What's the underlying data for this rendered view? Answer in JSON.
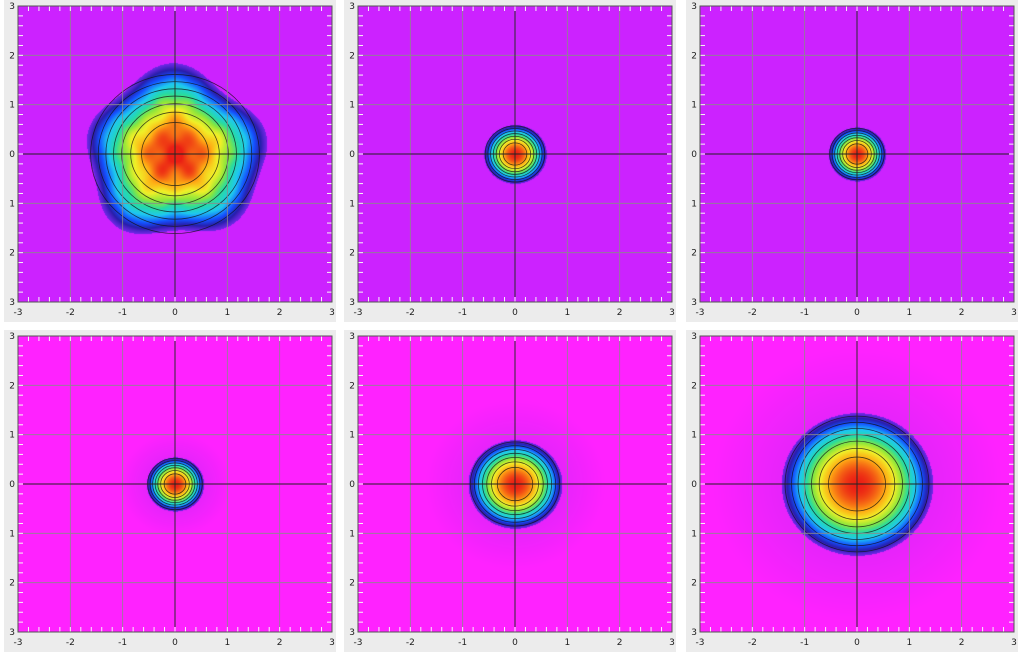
{
  "chart_data": [
    {
      "type": "heatmap",
      "xlim": [
        -3,
        3
      ],
      "ylim": [
        -3,
        3
      ],
      "x_ticks": [
        "-3",
        "-2",
        "-1",
        "0",
        "1",
        "2",
        "3"
      ],
      "y_ticks": [
        "3",
        "2",
        "1",
        "0",
        "1",
        "2",
        "3"
      ],
      "grid": true,
      "contours": true,
      "colormap": "rainbow",
      "background_color": "#cc22ff",
      "blob": {
        "center": [
          0.0,
          0.0
        ],
        "radius": 1.7,
        "peak": 1.0,
        "noise": true
      }
    },
    {
      "type": "heatmap",
      "xlim": [
        -3,
        3
      ],
      "ylim": [
        -3,
        3
      ],
      "x_ticks": [
        "-3",
        "-2",
        "-1",
        "0",
        "1",
        "2",
        "3"
      ],
      "y_ticks": [
        "3",
        "2",
        "1",
        "0",
        "1",
        "2",
        "3"
      ],
      "grid": true,
      "contours": true,
      "colormap": "rainbow",
      "background_color": "#cc22ff",
      "blob": {
        "center": [
          0.0,
          0.0
        ],
        "radius": 0.6,
        "peak": 1.0,
        "noise": false
      }
    },
    {
      "type": "heatmap",
      "xlim": [
        -3,
        3
      ],
      "ylim": [
        -3,
        3
      ],
      "x_ticks": [
        "-3",
        "-2",
        "-1",
        "0",
        "1",
        "2",
        "3"
      ],
      "y_ticks": [
        "3",
        "2",
        "1",
        "0",
        "1",
        "2",
        "3"
      ],
      "grid": true,
      "contours": true,
      "colormap": "rainbow",
      "background_color": "#cc22ff",
      "blob": {
        "center": [
          0.0,
          0.0
        ],
        "radius": 0.55,
        "peak": 1.0,
        "noise": false
      }
    },
    {
      "type": "heatmap",
      "xlim": [
        -3,
        3
      ],
      "ylim": [
        -3,
        3
      ],
      "x_ticks": [
        "-3",
        "-2",
        "-1",
        "0",
        "1",
        "2",
        "3"
      ],
      "y_ticks": [
        "3",
        "2",
        "1",
        "0",
        "1",
        "2",
        "3"
      ],
      "grid": true,
      "contours": true,
      "colormap": "rainbow",
      "background_color": "#ff22ff",
      "blob": {
        "center": [
          0.0,
          0.0
        ],
        "radius": 0.55,
        "peak": 1.0,
        "noise": false
      }
    },
    {
      "type": "heatmap",
      "xlim": [
        -3,
        3
      ],
      "ylim": [
        -3,
        3
      ],
      "x_ticks": [
        "-3",
        "-2",
        "-1",
        "0",
        "1",
        "2",
        "3"
      ],
      "y_ticks": [
        "3",
        "2",
        "1",
        "0",
        "1",
        "2",
        "3"
      ],
      "grid": true,
      "contours": true,
      "colormap": "rainbow",
      "background_color": "#ff22ff",
      "blob": {
        "center": [
          0.0,
          0.0
        ],
        "radius": 0.9,
        "peak": 1.0,
        "noise": false
      }
    },
    {
      "type": "heatmap",
      "xlim": [
        -3,
        3
      ],
      "ylim": [
        -3,
        3
      ],
      "x_ticks": [
        "-3",
        "-2",
        "-1",
        "0",
        "1",
        "2",
        "3"
      ],
      "y_ticks": [
        "3",
        "2",
        "1",
        "0",
        "1",
        "2",
        "3"
      ],
      "grid": true,
      "contours": true,
      "colormap": "rainbow",
      "background_color": "#ff22ff",
      "blob": {
        "center": [
          0.0,
          0.0
        ],
        "radius": 1.45,
        "peak": 1.0,
        "noise": false
      }
    }
  ]
}
